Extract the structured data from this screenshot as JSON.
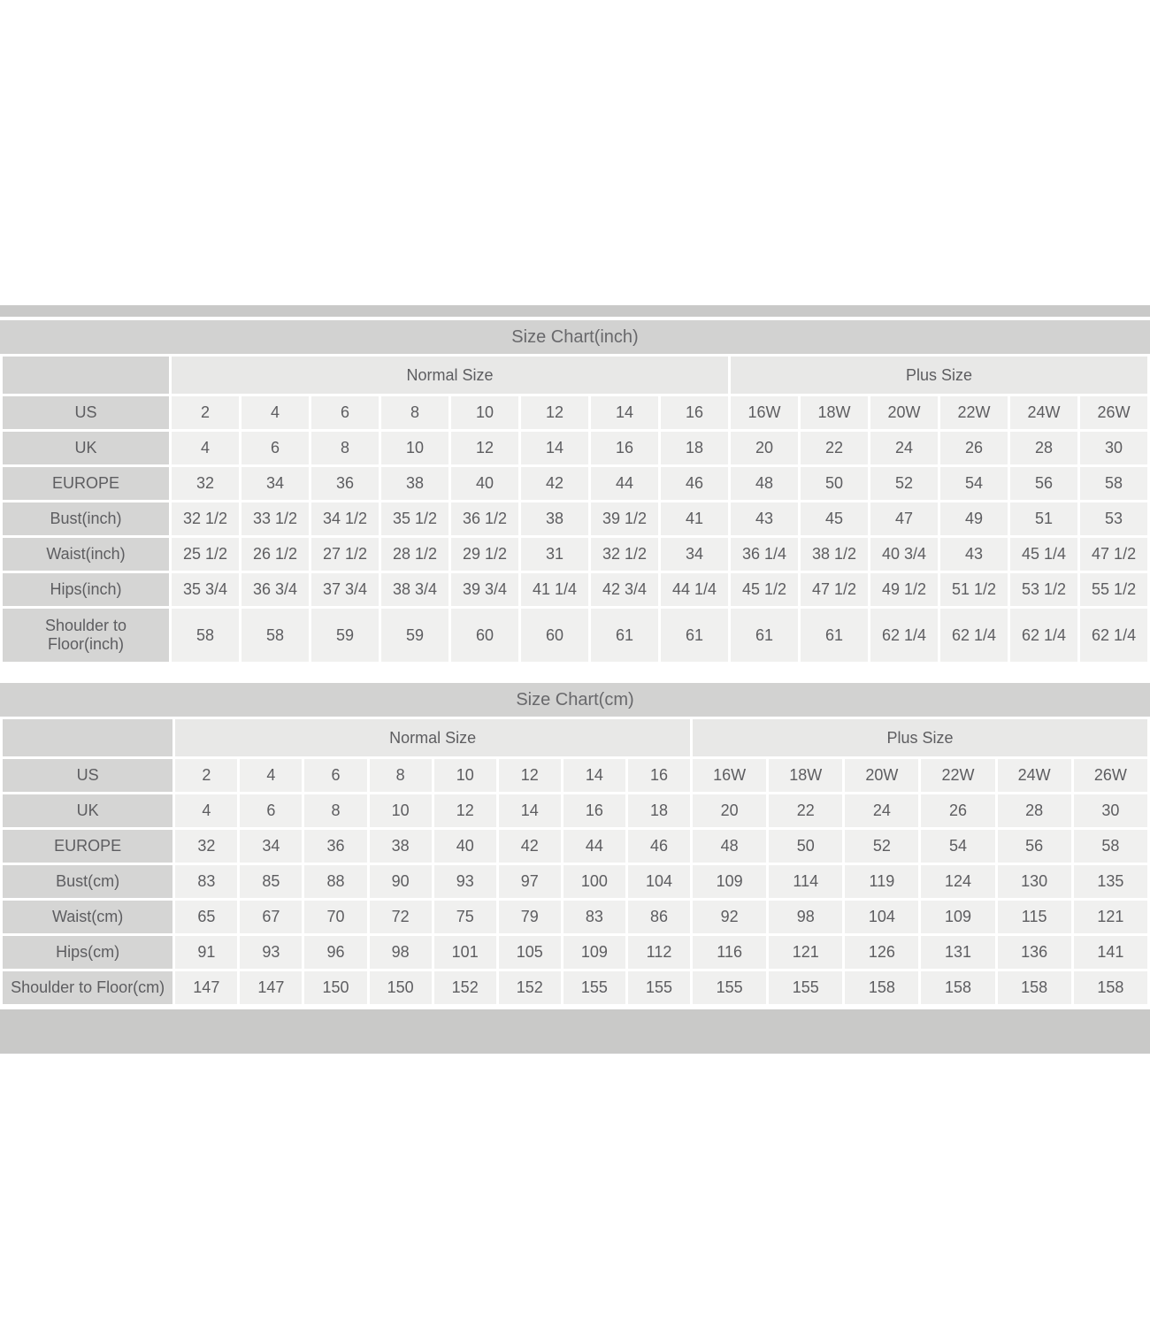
{
  "colors": {
    "page_background": "#ffffff",
    "outer_strip": "#c9c9c8",
    "title_bar": "#d2d2d1",
    "label_cell": "#d5d5d4",
    "group_header_cell": "#e8e8e7",
    "data_cell": "#f0f0ef",
    "text": "#5d5d60"
  },
  "chart_data": [
    {
      "type": "table",
      "title": "Size Chart(inch)",
      "column_groups": [
        {
          "label": "Normal Size",
          "span": 8
        },
        {
          "label": "Plus Size",
          "span": 6
        }
      ],
      "rows": [
        {
          "label": "US",
          "values": [
            "2",
            "4",
            "6",
            "8",
            "10",
            "12",
            "14",
            "16",
            "16W",
            "18W",
            "20W",
            "22W",
            "24W",
            "26W"
          ]
        },
        {
          "label": "UK",
          "values": [
            "4",
            "6",
            "8",
            "10",
            "12",
            "14",
            "16",
            "18",
            "20",
            "22",
            "24",
            "26",
            "28",
            "30"
          ]
        },
        {
          "label": "EUROPE",
          "values": [
            "32",
            "34",
            "36",
            "38",
            "40",
            "42",
            "44",
            "46",
            "48",
            "50",
            "52",
            "54",
            "56",
            "58"
          ]
        },
        {
          "label": "Bust(inch)",
          "values": [
            "32 1/2",
            "33 1/2",
            "34 1/2",
            "35 1/2",
            "36 1/2",
            "38",
            "39 1/2",
            "41",
            "43",
            "45",
            "47",
            "49",
            "51",
            "53"
          ]
        },
        {
          "label": "Waist(inch)",
          "values": [
            "25 1/2",
            "26 1/2",
            "27 1/2",
            "28 1/2",
            "29 1/2",
            "31",
            "32 1/2",
            "34",
            "36 1/4",
            "38 1/2",
            "40 3/4",
            "43",
            "45 1/4",
            "47 1/2"
          ]
        },
        {
          "label": "Hips(inch)",
          "values": [
            "35 3/4",
            "36 3/4",
            "37 3/4",
            "38 3/4",
            "39 3/4",
            "41 1/4",
            "42 3/4",
            "44 1/4",
            "45 1/2",
            "47 1/2",
            "49 1/2",
            "51 1/2",
            "53 1/2",
            "55 1/2"
          ]
        },
        {
          "label": "Shoulder to Floor(inch)",
          "values": [
            "58",
            "58",
            "59",
            "59",
            "60",
            "60",
            "61",
            "61",
            "61",
            "61",
            "62 1/4",
            "62 1/4",
            "62 1/4",
            "62 1/4"
          ]
        }
      ]
    },
    {
      "type": "table",
      "title": "Size Chart(cm)",
      "column_groups": [
        {
          "label": "Normal Size",
          "span": 8
        },
        {
          "label": "Plus Size",
          "span": 6
        }
      ],
      "rows": [
        {
          "label": "US",
          "values": [
            "2",
            "4",
            "6",
            "8",
            "10",
            "12",
            "14",
            "16",
            "16W",
            "18W",
            "20W",
            "22W",
            "24W",
            "26W"
          ]
        },
        {
          "label": "UK",
          "values": [
            "4",
            "6",
            "8",
            "10",
            "12",
            "14",
            "16",
            "18",
            "20",
            "22",
            "24",
            "26",
            "28",
            "30"
          ]
        },
        {
          "label": "EUROPE",
          "values": [
            "32",
            "34",
            "36",
            "38",
            "40",
            "42",
            "44",
            "46",
            "48",
            "50",
            "52",
            "54",
            "56",
            "58"
          ]
        },
        {
          "label": "Bust(cm)",
          "values": [
            "83",
            "85",
            "88",
            "90",
            "93",
            "97",
            "100",
            "104",
            "109",
            "114",
            "119",
            "124",
            "130",
            "135"
          ]
        },
        {
          "label": "Waist(cm)",
          "values": [
            "65",
            "67",
            "70",
            "72",
            "75",
            "79",
            "83",
            "86",
            "92",
            "98",
            "104",
            "109",
            "115",
            "121"
          ]
        },
        {
          "label": "Hips(cm)",
          "values": [
            "91",
            "93",
            "96",
            "98",
            "101",
            "105",
            "109",
            "112",
            "116",
            "121",
            "126",
            "131",
            "136",
            "141"
          ]
        },
        {
          "label": "Shoulder to Floor(cm)",
          "values": [
            "147",
            "147",
            "150",
            "150",
            "152",
            "152",
            "155",
            "155",
            "155",
            "155",
            "158",
            "158",
            "158",
            "158"
          ]
        }
      ]
    }
  ]
}
